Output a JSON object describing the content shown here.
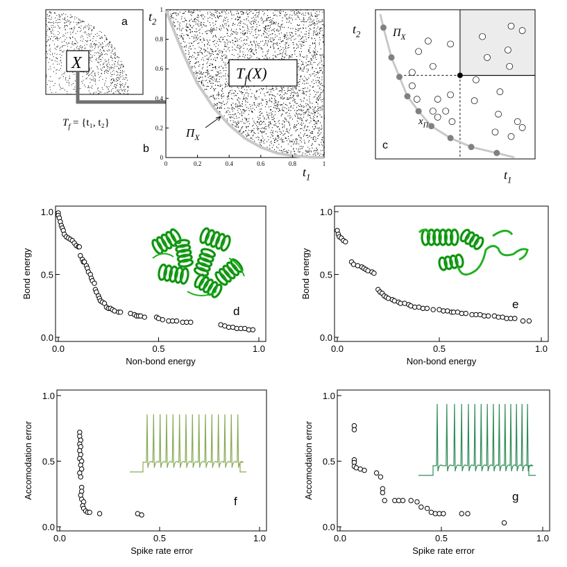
{
  "figure": {
    "panel_letters": {
      "a": "a",
      "b": "b",
      "c": "c",
      "d": "d",
      "e": "e",
      "f": "f",
      "g": "g"
    },
    "colors": {
      "frontier": "#c8c8c8",
      "arrow": "#707070",
      "protein": "#22b022",
      "trace_f": "#88aa55",
      "trace_g": "#2e8b57",
      "dominated_region": "#ececec"
    }
  },
  "chart_data": [
    {
      "id": "a",
      "type": "scatter",
      "title": "",
      "annotations": {
        "box_label": "X",
        "map_label": "T",
        "map_sub": "f",
        "map_set": "= {t₁, t₂}"
      },
      "description_points": "dense point cloud in a quarter-disc shaped set",
      "radius": 0.8
    },
    {
      "id": "b",
      "type": "scatter",
      "xlabel": "t",
      "xlabel_sub": "1",
      "ylabel": "t",
      "ylabel_sub": "2",
      "xlim": [
        0,
        1
      ],
      "ylim": [
        0,
        1
      ],
      "xticks": [
        "0",
        "0.2",
        "0.4",
        "0.6",
        "0.8",
        "1"
      ],
      "yticks": [
        "0",
        "0.2",
        "0.4",
        "0.6",
        "0.8",
        "1"
      ],
      "frontier_label": "Π",
      "frontier_sub": "X",
      "image_label": "T",
      "image_sub": "f",
      "image_arg": "(X)",
      "frontier": {
        "x": [
          0.0,
          0.05,
          0.1,
          0.15,
          0.2,
          0.3,
          0.4,
          0.5,
          0.6,
          0.7,
          0.8,
          0.9,
          1.0
        ],
        "y": [
          1.0,
          0.86,
          0.73,
          0.61,
          0.5,
          0.34,
          0.22,
          0.13,
          0.07,
          0.03,
          0.012,
          0.003,
          0.0
        ]
      }
    },
    {
      "id": "c",
      "type": "scatter",
      "xlabel": "t",
      "xlabel_sub": "1",
      "ylabel": "t",
      "ylabel_sub": "2",
      "frontier_label": "Π",
      "frontier_sub": "X",
      "point_label": "x",
      "point_sub": "Π",
      "xlim": [
        0,
        1
      ],
      "ylim": [
        0,
        1
      ],
      "selected": {
        "x": 0.53,
        "y": 0.56
      },
      "pareto": {
        "x": [
          0.05,
          0.1,
          0.15,
          0.2,
          0.27,
          0.35,
          0.47,
          0.6,
          0.76
        ],
        "y": [
          0.88,
          0.68,
          0.55,
          0.42,
          0.32,
          0.22,
          0.14,
          0.08,
          0.04
        ]
      },
      "dominated": {
        "x": [
          0.27,
          0.23,
          0.33,
          0.36,
          0.23,
          0.39,
          0.26,
          0.39,
          0.47,
          0.36,
          0.44,
          0.48,
          0.47,
          0.67,
          0.85,
          0.84,
          0.63,
          0.7,
          0.83,
          0.92,
          0.89,
          0.62,
          0.78,
          0.77,
          0.75,
          0.85,
          0.92
        ],
        "y": [
          0.72,
          0.58,
          0.79,
          0.62,
          0.49,
          0.4,
          0.4,
          0.28,
          0.43,
          0.32,
          0.32,
          0.25,
          0.77,
          0.82,
          0.89,
          0.62,
          0.53,
          0.68,
          0.73,
          0.86,
          0.25,
          0.39,
          0.45,
          0.3,
          0.18,
          0.15,
          0.21
        ]
      }
    },
    {
      "id": "d",
      "type": "scatter",
      "xlabel": "Non-bond energy",
      "ylabel": "Bond energy",
      "xlim": [
        0,
        1
      ],
      "ylim": [
        0,
        1
      ],
      "xticks": [
        "0.0",
        "0.5",
        "1.0"
      ],
      "yticks": [
        "0.0",
        "0.5",
        "1.0"
      ],
      "inset": "green alpha-helical protein cartoon (multi-helix)",
      "x": [
        0.0,
        0.0,
        0.005,
        0.01,
        0.015,
        0.02,
        0.025,
        0.03,
        0.04,
        0.05,
        0.06,
        0.07,
        0.08,
        0.09,
        0.1,
        0.105,
        0.11,
        0.12,
        0.125,
        0.13,
        0.14,
        0.145,
        0.15,
        0.16,
        0.165,
        0.17,
        0.18,
        0.185,
        0.19,
        0.2,
        0.205,
        0.21,
        0.22,
        0.23,
        0.24,
        0.25,
        0.26,
        0.27,
        0.28,
        0.3,
        0.31,
        0.36,
        0.38,
        0.39,
        0.4,
        0.41,
        0.43,
        0.49,
        0.5,
        0.52,
        0.55,
        0.57,
        0.59,
        0.62,
        0.64,
        0.66,
        0.81,
        0.83,
        0.85,
        0.87,
        0.89,
        0.91,
        0.93,
        0.95,
        0.97
      ],
      "y": [
        0.99,
        0.97,
        0.95,
        0.92,
        0.89,
        0.87,
        0.85,
        0.82,
        0.8,
        0.79,
        0.78,
        0.77,
        0.75,
        0.73,
        0.72,
        0.72,
        0.65,
        0.62,
        0.6,
        0.6,
        0.57,
        0.55,
        0.52,
        0.5,
        0.47,
        0.45,
        0.43,
        0.38,
        0.36,
        0.33,
        0.31,
        0.29,
        0.28,
        0.27,
        0.24,
        0.23,
        0.23,
        0.22,
        0.21,
        0.2,
        0.2,
        0.19,
        0.18,
        0.17,
        0.17,
        0.17,
        0.16,
        0.16,
        0.15,
        0.14,
        0.13,
        0.13,
        0.13,
        0.12,
        0.12,
        0.12,
        0.1,
        0.09,
        0.08,
        0.08,
        0.07,
        0.07,
        0.07,
        0.06,
        0.06
      ]
    },
    {
      "id": "e",
      "type": "scatter",
      "xlabel": "Non-bond energy",
      "ylabel": "Bond energy",
      "xlim": [
        0,
        1
      ],
      "ylim": [
        0,
        1
      ],
      "xticks": [
        "0.0",
        "0.5",
        "1.0"
      ],
      "yticks": [
        "0.0",
        "0.5",
        "1.0"
      ],
      "inset": "green protein cartoon (helices and loops)",
      "x": [
        0.0,
        0.005,
        0.01,
        0.02,
        0.03,
        0.04,
        0.07,
        0.08,
        0.1,
        0.12,
        0.13,
        0.14,
        0.15,
        0.17,
        0.18,
        0.2,
        0.21,
        0.22,
        0.23,
        0.24,
        0.25,
        0.27,
        0.28,
        0.3,
        0.31,
        0.33,
        0.35,
        0.36,
        0.38,
        0.4,
        0.42,
        0.44,
        0.47,
        0.5,
        0.52,
        0.54,
        0.56,
        0.57,
        0.59,
        0.61,
        0.63,
        0.66,
        0.68,
        0.7,
        0.72,
        0.74,
        0.77,
        0.79,
        0.81,
        0.83,
        0.85,
        0.87,
        0.91,
        0.94
      ],
      "y": [
        0.85,
        0.82,
        0.8,
        0.79,
        0.77,
        0.76,
        0.6,
        0.58,
        0.57,
        0.56,
        0.55,
        0.54,
        0.53,
        0.52,
        0.51,
        0.38,
        0.36,
        0.35,
        0.33,
        0.32,
        0.31,
        0.3,
        0.29,
        0.28,
        0.27,
        0.27,
        0.26,
        0.25,
        0.24,
        0.24,
        0.23,
        0.23,
        0.22,
        0.22,
        0.21,
        0.21,
        0.2,
        0.2,
        0.2,
        0.19,
        0.19,
        0.18,
        0.18,
        0.18,
        0.17,
        0.17,
        0.17,
        0.16,
        0.16,
        0.15,
        0.15,
        0.15,
        0.13,
        0.13
      ]
    },
    {
      "id": "f",
      "type": "scatter",
      "xlabel": "Spike rate error",
      "ylabel": "Accomodation error",
      "xlim": [
        0,
        1
      ],
      "ylim": [
        0,
        1
      ],
      "xticks": [
        "0.0",
        "0.5",
        "1.0"
      ],
      "yticks": [
        "0.0",
        "0.5",
        "1.0"
      ],
      "inset": "neuron voltage trace with ~15 regular spikes",
      "x": [
        0.1,
        0.1,
        0.105,
        0.1,
        0.105,
        0.1,
        0.105,
        0.1,
        0.11,
        0.105,
        0.11,
        0.1,
        0.105,
        0.11,
        0.11,
        0.105,
        0.11,
        0.12,
        0.115,
        0.12,
        0.13,
        0.14,
        0.15,
        0.2,
        0.39,
        0.41
      ],
      "y": [
        0.72,
        0.69,
        0.66,
        0.63,
        0.61,
        0.58,
        0.55,
        0.52,
        0.5,
        0.47,
        0.44,
        0.41,
        0.38,
        0.3,
        0.27,
        0.24,
        0.21,
        0.19,
        0.16,
        0.14,
        0.12,
        0.11,
        0.11,
        0.1,
        0.1,
        0.09
      ]
    },
    {
      "id": "g",
      "type": "scatter",
      "xlabel": "Spike rate error",
      "ylabel": "Accomodation error",
      "xlim": [
        0,
        1
      ],
      "ylim": [
        0,
        1
      ],
      "xticks": [
        "0.0",
        "0.5",
        "1.0"
      ],
      "yticks": [
        "0.0",
        "0.5",
        "1.0"
      ],
      "inset": "neuron voltage trace with ~15 spikes",
      "x": [
        0.07,
        0.07,
        0.07,
        0.07,
        0.07,
        0.08,
        0.1,
        0.12,
        0.18,
        0.2,
        0.21,
        0.21,
        0.22,
        0.27,
        0.29,
        0.31,
        0.35,
        0.38,
        0.4,
        0.43,
        0.45,
        0.47,
        0.49,
        0.51,
        0.6,
        0.63,
        0.81
      ],
      "y": [
        0.77,
        0.74,
        0.51,
        0.49,
        0.46,
        0.45,
        0.44,
        0.43,
        0.41,
        0.38,
        0.29,
        0.26,
        0.2,
        0.2,
        0.2,
        0.2,
        0.2,
        0.19,
        0.15,
        0.14,
        0.11,
        0.1,
        0.1,
        0.1,
        0.1,
        0.1,
        0.03
      ]
    }
  ]
}
